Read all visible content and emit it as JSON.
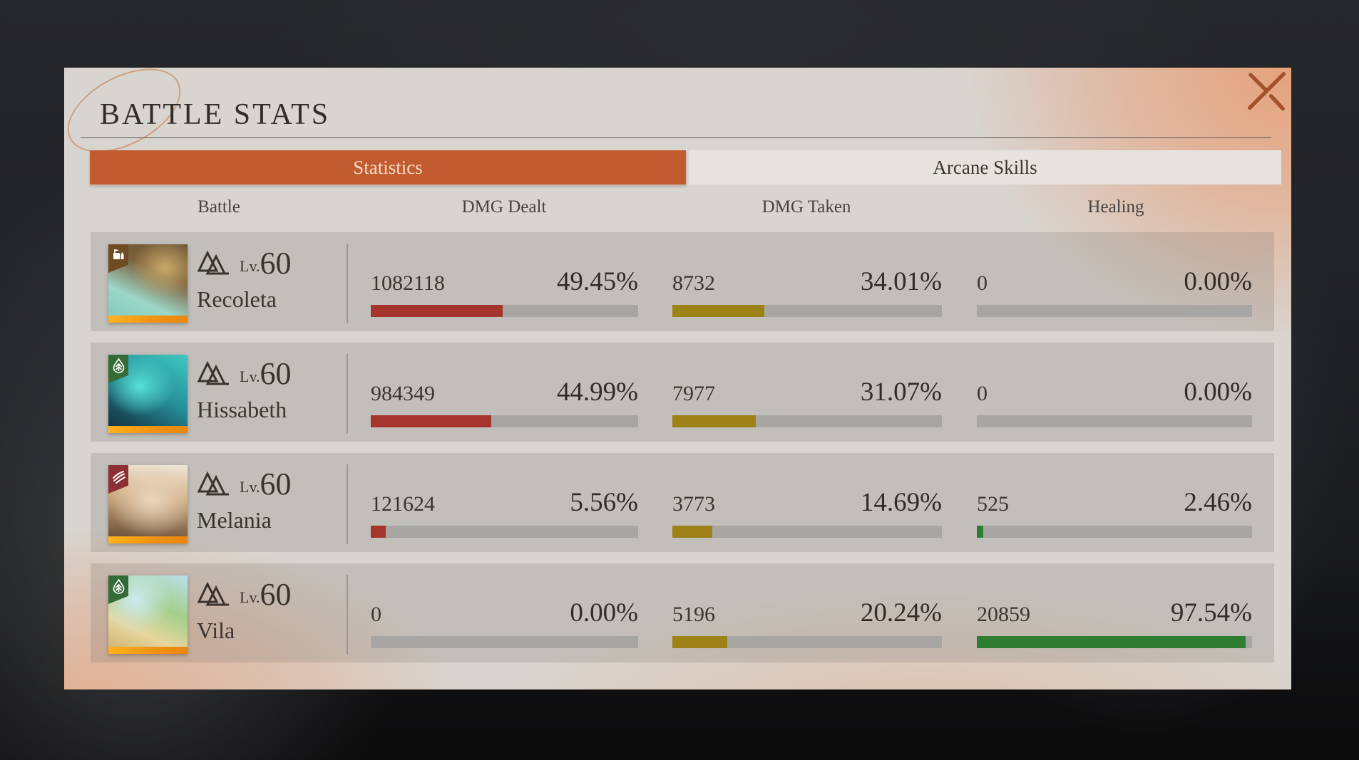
{
  "window": {
    "title": "BATTLE STATS",
    "close_icon": "close-x"
  },
  "tabs": [
    {
      "label": "Statistics",
      "active": true
    },
    {
      "label": "Arcane Skills",
      "active": false
    }
  ],
  "columns": [
    "Battle",
    "DMG Dealt",
    "DMG Taken",
    "Healing"
  ],
  "level_label": "Lv.",
  "characters": [
    {
      "name": "Recoleta",
      "level": "60",
      "affinity": "mineral",
      "dmg_dealt": {
        "value": "1082118",
        "percent": "49.45%",
        "fill": 49.45
      },
      "dmg_taken": {
        "value": "8732",
        "percent": "34.01%",
        "fill": 34.01
      },
      "healing": {
        "value": "0",
        "percent": "0.00%",
        "fill": 0
      }
    },
    {
      "name": "Hissabeth",
      "level": "60",
      "affinity": "plant",
      "dmg_dealt": {
        "value": "984349",
        "percent": "44.99%",
        "fill": 44.99
      },
      "dmg_taken": {
        "value": "7977",
        "percent": "31.07%",
        "fill": 31.07
      },
      "healing": {
        "value": "0",
        "percent": "0.00%",
        "fill": 0
      }
    },
    {
      "name": "Melania",
      "level": "60",
      "affinity": "beast",
      "dmg_dealt": {
        "value": "121624",
        "percent": "5.56%",
        "fill": 5.56
      },
      "dmg_taken": {
        "value": "3773",
        "percent": "14.69%",
        "fill": 14.69
      },
      "healing": {
        "value": "525",
        "percent": "2.46%",
        "fill": 2.46
      }
    },
    {
      "name": "Vila",
      "level": "60",
      "affinity": "plant",
      "dmg_dealt": {
        "value": "0",
        "percent": "0.00%",
        "fill": 0
      },
      "dmg_taken": {
        "value": "5196",
        "percent": "20.24%",
        "fill": 20.24
      },
      "healing": {
        "value": "20859",
        "percent": "97.54%",
        "fill": 97.54
      }
    }
  ],
  "colors": {
    "accent_orange": "#C25C30",
    "dmg_dealt": "#A5342C",
    "dmg_taken": "#9C8217",
    "healing": "#2F7D33",
    "bar_track": "#A8A6A2",
    "close": "#A3512B",
    "panel_glow": "#E6A27C"
  }
}
